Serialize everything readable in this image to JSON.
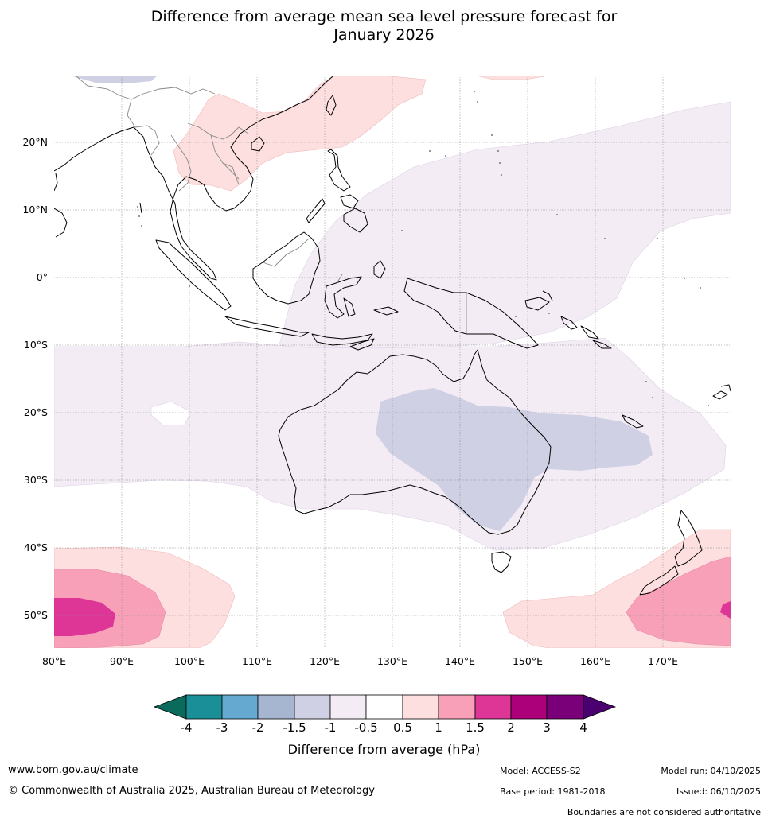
{
  "title": {
    "line1": "Difference from average mean sea level pressure forecast for",
    "line2": "January 2026"
  },
  "map": {
    "lat_labels": [
      "20°N",
      "10°N",
      "0°",
      "10°S",
      "20°S",
      "30°S",
      "40°S",
      "50°S"
    ],
    "lon_labels": [
      "80°E",
      "90°E",
      "100°E",
      "110°E",
      "120°E",
      "130°E",
      "140°E",
      "150°E",
      "160°E",
      "170°E"
    ]
  },
  "colorbar": {
    "title": "Difference from average (hPa)",
    "tick_labels": [
      "-4",
      "-3",
      "-2",
      "-1.5",
      "-1",
      "-0.5",
      "0.5",
      "1",
      "1.5",
      "2",
      "3",
      "4"
    ],
    "colors": {
      "below_-4": "#0a6a5c",
      "-4_-3": "#1b8f98",
      "-3_-2": "#65a9d0",
      "-2_-1.5": "#a6b6d0",
      "-1.5_-1": "#cfd0e3",
      "-1_-0.5": "#f3ecf5",
      "-0.5_0.5": "#ffffff",
      "0.5_1": "#fddfdf",
      "1_1.5": "#f9a0b9",
      "1.5_2": "#dd3697",
      "2_3": "#ab007a",
      "3_4": "#790078",
      "above_4": "#4a006e"
    }
  },
  "footer": {
    "website": "www.bom.gov.au/climate",
    "copyright": "© Commonwealth of Australia 2025, Australian Bureau of Meteorology",
    "model": "Model: ACCESS-S2",
    "base_period": "Base period: 1981-2018",
    "model_run": "Model run: 04/10/2025",
    "issued": "Issued: 06/10/2025",
    "disclaimer": "Boundaries are not considered authoritative"
  }
}
